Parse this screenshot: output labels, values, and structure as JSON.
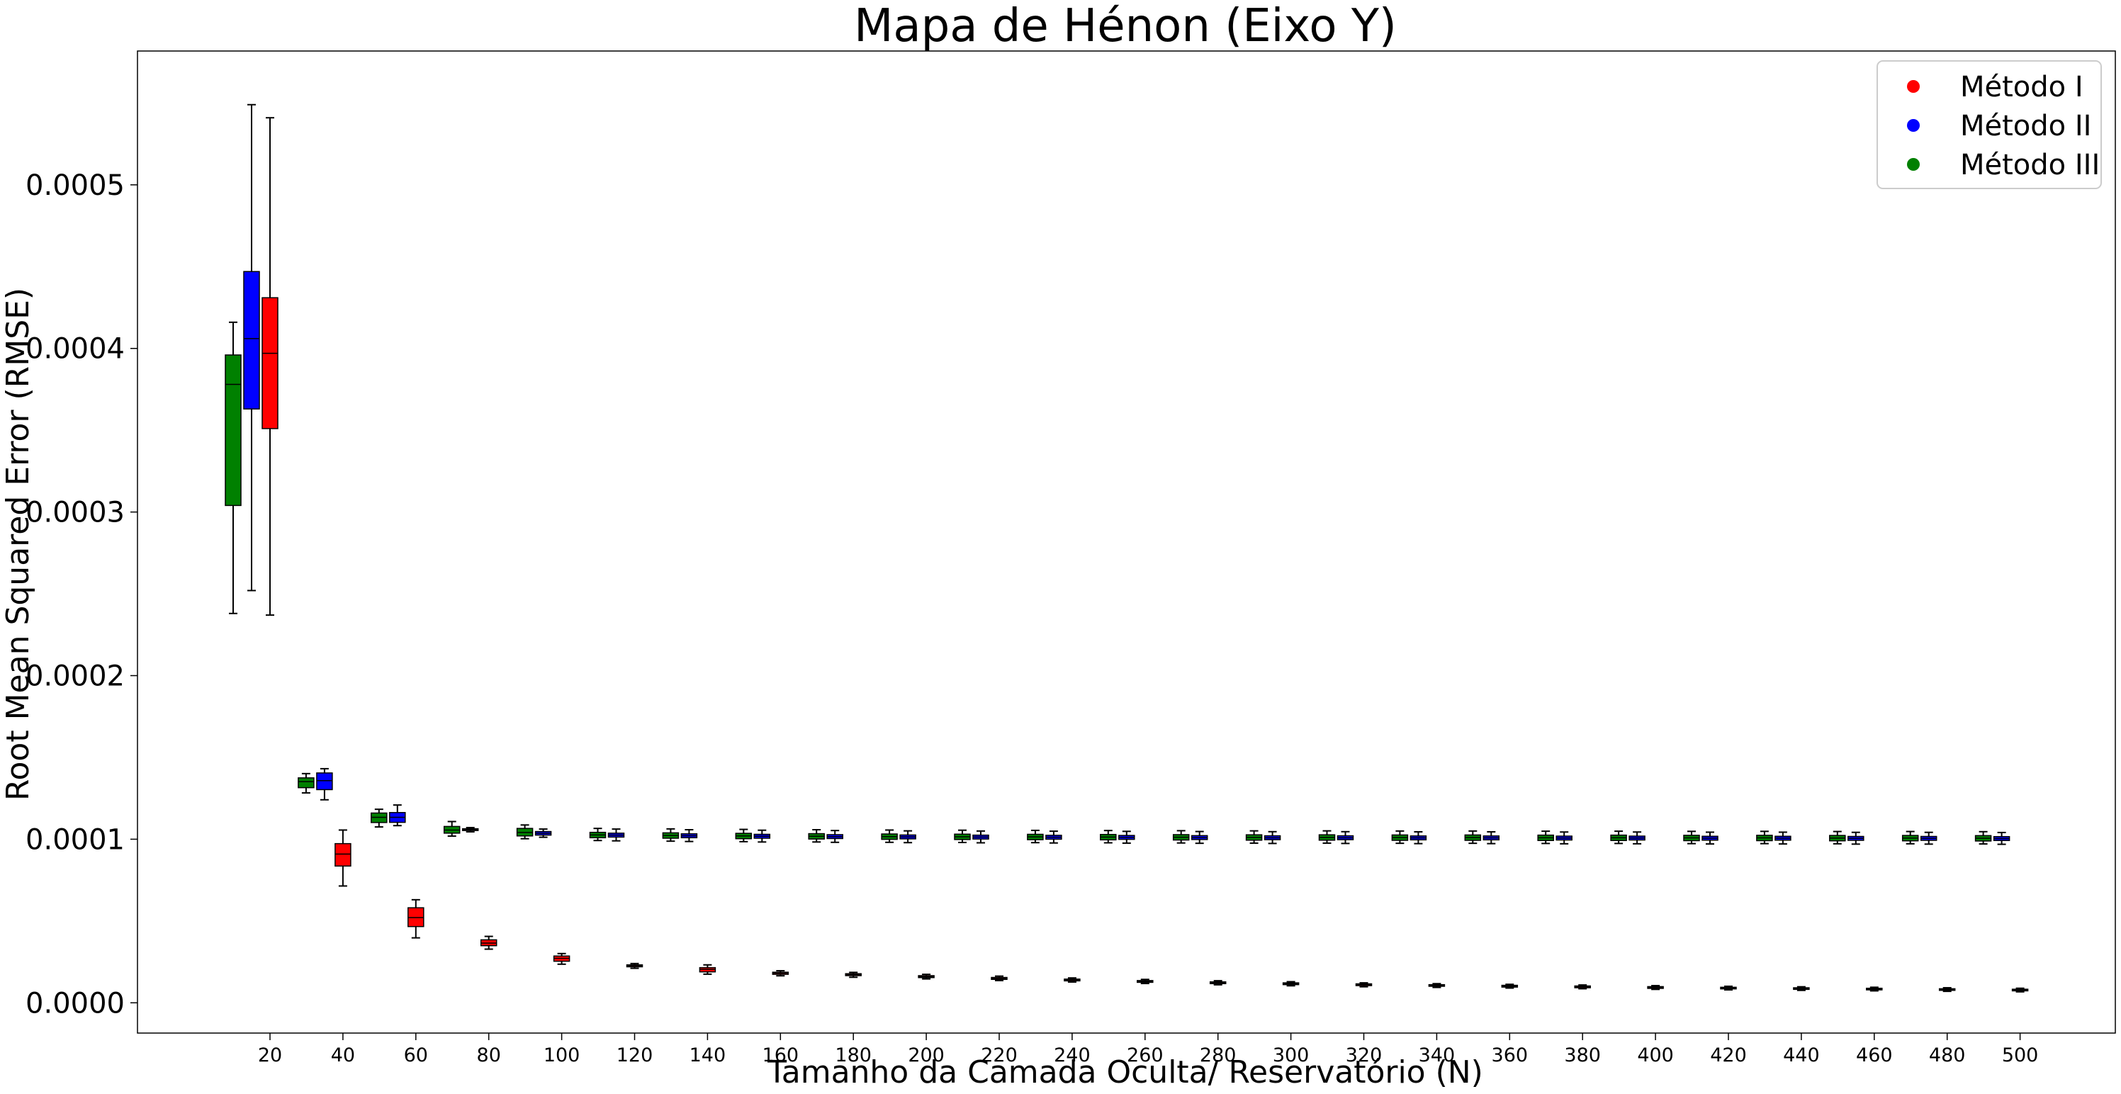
{
  "chart_data": {
    "type": "box",
    "title": "Mapa de Hénon (Eixo Y)",
    "xlabel": "Tamanho da Camada Oculta/ Reservatório (N)",
    "ylabel": "Root Mean Squared Error (RMSE)",
    "ylim": [
      -1.85e-05,
      0.0005818
    ],
    "yticks": [
      "0.0000",
      "0.0001",
      "0.0002",
      "0.0003",
      "0.0004",
      "0.0005"
    ],
    "yticks_values": [
      0,
      0.0001,
      0.0002,
      0.0003,
      0.0004,
      0.0005
    ],
    "categories": [
      "20",
      "40",
      "60",
      "80",
      "100",
      "120",
      "140",
      "160",
      "180",
      "200",
      "220",
      "240",
      "260",
      "280",
      "300",
      "320",
      "340",
      "360",
      "380",
      "400",
      "420",
      "440",
      "460",
      "480",
      "500"
    ],
    "grid": false,
    "legend_position": "top-right",
    "series": [
      {
        "name": "Método I",
        "color": "#ff0000",
        "boxes": [
          {
            "whislo": 0.000237,
            "q1": 0.000351,
            "med": 0.000397,
            "q3": 0.000431,
            "whishi": 0.000541
          },
          {
            "whislo": 7.14e-05,
            "q1": 8.36e-05,
            "med": 9.09e-05,
            "q3": 9.73e-05,
            "whishi": 0.0001056
          },
          {
            "whislo": 3.97e-05,
            "q1": 4.66e-05,
            "med": 5.21e-05,
            "q3": 5.81e-05,
            "whishi": 6.3e-05
          },
          {
            "whislo": 3.28e-05,
            "q1": 3.49e-05,
            "med": 3.65e-05,
            "q3": 3.85e-05,
            "whishi": 4.06e-05
          },
          {
            "whislo": 2.36e-05,
            "q1": 2.54e-05,
            "med": 2.72e-05,
            "q3": 2.86e-05,
            "whishi": 3.01e-05
          },
          {
            "whislo": 2.11e-05,
            "q1": 2.2e-05,
            "med": 2.26e-05,
            "q3": 2.32e-05,
            "whishi": 2.4e-05
          },
          {
            "whislo": 1.75e-05,
            "q1": 1.89e-05,
            "med": 2.05e-05,
            "q3": 2.15e-05,
            "whishi": 2.32e-05
          },
          {
            "whislo": 1.65e-05,
            "q1": 1.74e-05,
            "med": 1.81e-05,
            "q3": 1.87e-05,
            "whishi": 1.96e-05
          },
          {
            "whislo": 1.56e-05,
            "q1": 1.66e-05,
            "med": 1.72e-05,
            "q3": 1.78e-05,
            "whishi": 1.86e-05
          },
          {
            "whislo": 1.46e-05,
            "q1": 1.54e-05,
            "med": 1.6e-05,
            "q3": 1.66e-05,
            "whishi": 1.74e-05
          },
          {
            "whislo": 1.36e-05,
            "q1": 1.43e-05,
            "med": 1.49e-05,
            "q3": 1.55e-05,
            "whishi": 1.63e-05
          },
          {
            "whislo": 1.27e-05,
            "q1": 1.34e-05,
            "med": 1.4e-05,
            "q3": 1.45e-05,
            "whishi": 1.52e-05
          },
          {
            "whislo": 1.18e-05,
            "q1": 1.25e-05,
            "med": 1.3e-05,
            "q3": 1.36e-05,
            "whishi": 1.43e-05
          },
          {
            "whislo": 1.1e-05,
            "q1": 1.17e-05,
            "med": 1.23e-05,
            "q3": 1.28e-05,
            "whishi": 1.35e-05
          },
          {
            "whislo": 1.04e-05,
            "q1": 1.11e-05,
            "med": 1.17e-05,
            "q3": 1.22e-05,
            "whishi": 1.29e-05
          },
          {
            "whislo": 9.8e-06,
            "q1": 1.05e-05,
            "med": 1.11e-05,
            "q3": 1.16e-05,
            "whishi": 1.22e-05
          },
          {
            "whislo": 9.4e-06,
            "q1": 1.01e-05,
            "med": 1.06e-05,
            "q3": 1.11e-05,
            "whishi": 1.17e-05
          },
          {
            "whislo": 9e-06,
            "q1": 9.6e-06,
            "med": 1.02e-05,
            "q3": 1.07e-05,
            "whishi": 1.13e-05
          },
          {
            "whislo": 8.6e-06,
            "q1": 9.2e-06,
            "med": 9.8e-06,
            "q3": 1.03e-05,
            "whishi": 1.09e-05
          },
          {
            "whislo": 8.2e-06,
            "q1": 8.8e-06,
            "med": 9.4e-06,
            "q3": 9.9e-06,
            "whishi": 1.05e-05
          },
          {
            "whislo": 7.9e-06,
            "q1": 8.5e-06,
            "med": 9e-06,
            "q3": 9.5e-06,
            "whishi": 1.01e-05
          },
          {
            "whislo": 7.6e-06,
            "q1": 8.2e-06,
            "med": 8.7e-06,
            "q3": 9.2e-06,
            "whishi": 9.8e-06
          },
          {
            "whislo": 7.3e-06,
            "q1": 7.9e-06,
            "med": 8.4e-06,
            "q3": 8.9e-06,
            "whishi": 9.5e-06
          },
          {
            "whislo": 7e-06,
            "q1": 7.6e-06,
            "med": 8.1e-06,
            "q3": 8.6e-06,
            "whishi": 9.2e-06
          },
          {
            "whislo": 6.7e-06,
            "q1": 7.3e-06,
            "med": 7.8e-06,
            "q3": 8.3e-06,
            "whishi": 8.9e-06
          }
        ]
      },
      {
        "name": "Método II",
        "color": "#0000ff",
        "boxes": [
          {
            "whislo": 0.000252,
            "q1": 0.000363,
            "med": 0.000406,
            "q3": 0.000447,
            "whishi": 0.000549
          },
          {
            "whislo": 0.0001241,
            "q1": 0.0001303,
            "med": 0.0001358,
            "q3": 0.0001405,
            "whishi": 0.0001431
          },
          {
            "whislo": 0.0001083,
            "q1": 0.0001103,
            "med": 0.0001134,
            "q3": 0.0001163,
            "whishi": 0.0001209
          },
          {
            "whislo": 0.0001045,
            "q1": 0.0001053,
            "med": 0.0001059,
            "q3": 0.0001064,
            "whishi": 0.0001071
          },
          {
            "whislo": 0.0001012,
            "q1": 0.0001025,
            "med": 0.0001036,
            "q3": 0.0001047,
            "whishi": 0.0001062
          },
          {
            "whislo": 9.9e-05,
            "q1": 0.0001013,
            "med": 0.0001025,
            "q3": 0.0001037,
            "whishi": 0.0001062
          },
          {
            "whislo": 9.86e-05,
            "q1": 0.0001009,
            "med": 0.0001021,
            "q3": 0.0001033,
            "whishi": 0.0001058
          },
          {
            "whislo": 9.83e-05,
            "q1": 0.0001006,
            "med": 0.0001018,
            "q3": 0.000103,
            "whishi": 0.0001055
          },
          {
            "whislo": 9.81e-05,
            "q1": 0.0001004,
            "med": 0.0001016,
            "q3": 0.0001028,
            "whishi": 0.0001053
          },
          {
            "whislo": 9.79e-05,
            "q1": 0.0001002,
            "med": 0.0001014,
            "q3": 0.0001026,
            "whishi": 0.0001051
          },
          {
            "whislo": 9.78e-05,
            "q1": 0.0001001,
            "med": 0.0001013,
            "q3": 0.0001025,
            "whishi": 0.000105
          },
          {
            "whislo": 9.77e-05,
            "q1": 0.0001,
            "med": 0.0001012,
            "q3": 0.0001024,
            "whishi": 0.0001049
          },
          {
            "whislo": 9.76e-05,
            "q1": 9.99e-05,
            "med": 0.0001011,
            "q3": 0.0001023,
            "whishi": 0.0001048
          },
          {
            "whislo": 9.75e-05,
            "q1": 9.98e-05,
            "med": 0.000101,
            "q3": 0.0001022,
            "whishi": 0.0001047
          },
          {
            "whislo": 9.74e-05,
            "q1": 9.97e-05,
            "med": 0.0001009,
            "q3": 0.0001021,
            "whishi": 0.0001046
          },
          {
            "whislo": 9.74e-05,
            "q1": 9.97e-05,
            "med": 0.0001009,
            "q3": 0.0001021,
            "whishi": 0.0001046
          },
          {
            "whislo": 9.73e-05,
            "q1": 9.96e-05,
            "med": 0.0001008,
            "q3": 0.000102,
            "whishi": 0.0001045
          },
          {
            "whislo": 9.73e-05,
            "q1": 9.96e-05,
            "med": 0.0001008,
            "q3": 0.000102,
            "whishi": 0.0001045
          },
          {
            "whislo": 9.72e-05,
            "q1": 9.95e-05,
            "med": 0.0001007,
            "q3": 0.0001019,
            "whishi": 0.0001044
          },
          {
            "whislo": 9.72e-05,
            "q1": 9.95e-05,
            "med": 0.0001007,
            "q3": 0.0001019,
            "whishi": 0.0001044
          },
          {
            "whislo": 9.71e-05,
            "q1": 9.94e-05,
            "med": 0.0001006,
            "q3": 0.0001018,
            "whishi": 0.0001043
          },
          {
            "whislo": 9.71e-05,
            "q1": 9.94e-05,
            "med": 0.0001006,
            "q3": 0.0001018,
            "whishi": 0.0001043
          },
          {
            "whislo": 9.7e-05,
            "q1": 9.93e-05,
            "med": 0.0001005,
            "q3": 0.0001017,
            "whishi": 0.0001042
          },
          {
            "whislo": 9.7e-05,
            "q1": 9.93e-05,
            "med": 0.0001005,
            "q3": 0.0001017,
            "whishi": 0.0001042
          },
          {
            "whislo": 9.69e-05,
            "q1": 9.92e-05,
            "med": 0.0001004,
            "q3": 0.0001016,
            "whishi": 0.0001041
          }
        ]
      },
      {
        "name": "Método III",
        "color": "#008000",
        "boxes": [
          {
            "whislo": 0.000238,
            "q1": 0.000304,
            "med": 0.000378,
            "q3": 0.000396,
            "whishi": 0.000416
          },
          {
            "whislo": 0.0001283,
            "q1": 0.0001315,
            "med": 0.0001352,
            "q3": 0.0001375,
            "whishi": 0.0001401
          },
          {
            "whislo": 0.0001075,
            "q1": 0.0001102,
            "med": 0.0001134,
            "q3": 0.000116,
            "whishi": 0.0001183
          },
          {
            "whislo": 0.0001019,
            "q1": 0.0001037,
            "med": 0.0001056,
            "q3": 0.0001078,
            "whishi": 0.0001108
          },
          {
            "whislo": 0.0001003,
            "q1": 0.000102,
            "med": 0.0001041,
            "q3": 0.0001066,
            "whishi": 0.0001087
          },
          {
            "whislo": 9.92e-05,
            "q1": 0.0001009,
            "med": 0.0001026,
            "q3": 0.0001042,
            "whishi": 0.0001066
          },
          {
            "whislo": 9.88e-05,
            "q1": 0.0001006,
            "med": 0.0001023,
            "q3": 0.0001039,
            "whishi": 0.0001063
          },
          {
            "whislo": 9.85e-05,
            "q1": 0.0001003,
            "med": 0.000102,
            "q3": 0.0001036,
            "whishi": 0.000106
          },
          {
            "whislo": 9.83e-05,
            "q1": 0.0001001,
            "med": 0.0001018,
            "q3": 0.0001034,
            "whishi": 0.0001058
          },
          {
            "whislo": 9.81e-05,
            "q1": 9.99e-05,
            "med": 0.0001016,
            "q3": 0.0001032,
            "whishi": 0.0001056
          },
          {
            "whislo": 9.8e-05,
            "q1": 9.98e-05,
            "med": 0.0001015,
            "q3": 0.0001031,
            "whishi": 0.0001055
          },
          {
            "whislo": 9.79e-05,
            "q1": 9.97e-05,
            "med": 0.0001014,
            "q3": 0.000103,
            "whishi": 0.0001054
          },
          {
            "whislo": 9.78e-05,
            "q1": 9.96e-05,
            "med": 0.0001013,
            "q3": 0.0001029,
            "whishi": 0.0001053
          },
          {
            "whislo": 9.77e-05,
            "q1": 9.95e-05,
            "med": 0.0001012,
            "q3": 0.0001028,
            "whishi": 0.0001052
          },
          {
            "whislo": 9.76e-05,
            "q1": 9.94e-05,
            "med": 0.0001011,
            "q3": 0.0001027,
            "whishi": 0.0001051
          },
          {
            "whislo": 9.76e-05,
            "q1": 9.94e-05,
            "med": 0.0001011,
            "q3": 0.0001027,
            "whishi": 0.0001051
          },
          {
            "whislo": 9.75e-05,
            "q1": 9.93e-05,
            "med": 0.000101,
            "q3": 0.0001026,
            "whishi": 0.000105
          },
          {
            "whislo": 9.75e-05,
            "q1": 9.93e-05,
            "med": 0.000101,
            "q3": 0.0001026,
            "whishi": 0.000105
          },
          {
            "whislo": 9.74e-05,
            "q1": 9.92e-05,
            "med": 0.0001009,
            "q3": 0.0001025,
            "whishi": 0.0001049
          },
          {
            "whislo": 9.74e-05,
            "q1": 9.92e-05,
            "med": 0.0001009,
            "q3": 0.0001025,
            "whishi": 0.0001049
          },
          {
            "whislo": 9.73e-05,
            "q1": 9.91e-05,
            "med": 0.0001008,
            "q3": 0.0001024,
            "whishi": 0.0001048
          },
          {
            "whislo": 9.73e-05,
            "q1": 9.91e-05,
            "med": 0.0001008,
            "q3": 0.0001024,
            "whishi": 0.0001048
          },
          {
            "whislo": 9.72e-05,
            "q1": 9.9e-05,
            "med": 0.0001007,
            "q3": 0.0001023,
            "whishi": 0.0001047
          },
          {
            "whislo": 9.72e-05,
            "q1": 9.9e-05,
            "med": 0.0001007,
            "q3": 0.0001023,
            "whishi": 0.0001047
          },
          {
            "whislo": 9.71e-05,
            "q1": 9.89e-05,
            "med": 0.0001006,
            "q3": 0.0001022,
            "whishi": 0.0001046
          }
        ]
      }
    ]
  }
}
